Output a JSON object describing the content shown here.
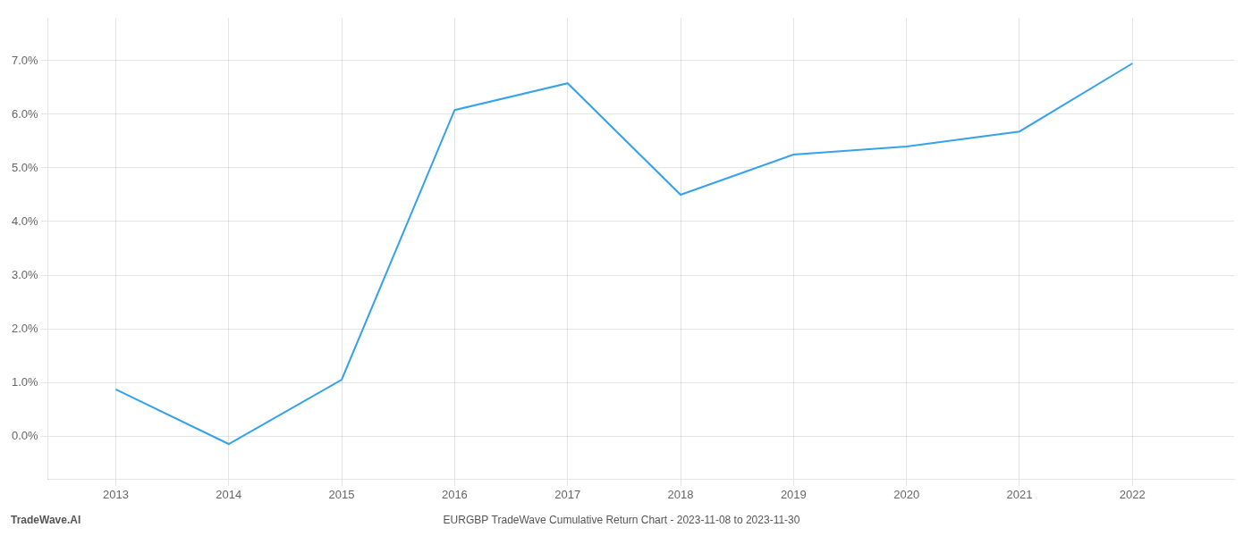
{
  "chart_data": {
    "type": "line",
    "title": "EURGBP TradeWave Cumulative Return Chart - 2023-11-08 to 2023-11-30",
    "annotations": [
      "TradeWave.AI"
    ],
    "x": [
      2013,
      2014,
      2015,
      2016,
      2017,
      2018,
      2019,
      2020,
      2021,
      2022
    ],
    "values": [
      0.0087,
      -0.0015,
      0.0105,
      0.0608,
      0.0658,
      0.045,
      0.0525,
      0.054,
      0.0568,
      0.0695
    ],
    "xlim": [
      2012.4,
      2022.9
    ],
    "ylim": [
      -0.008,
      0.078
    ],
    "xticks": [
      2013,
      2014,
      2015,
      2016,
      2017,
      2018,
      2019,
      2020,
      2021,
      2022
    ],
    "yticks": [
      {
        "value": 0.0,
        "label": "0.0%"
      },
      {
        "value": 0.01,
        "label": "1.0%"
      },
      {
        "value": 0.02,
        "label": "2.0%"
      },
      {
        "value": 0.03,
        "label": "3.0%"
      },
      {
        "value": 0.04,
        "label": "4.0%"
      },
      {
        "value": 0.05,
        "label": "5.0%"
      },
      {
        "value": 0.06,
        "label": "6.0%"
      },
      {
        "value": 0.07,
        "label": "7.0%"
      }
    ],
    "grid": true
  }
}
